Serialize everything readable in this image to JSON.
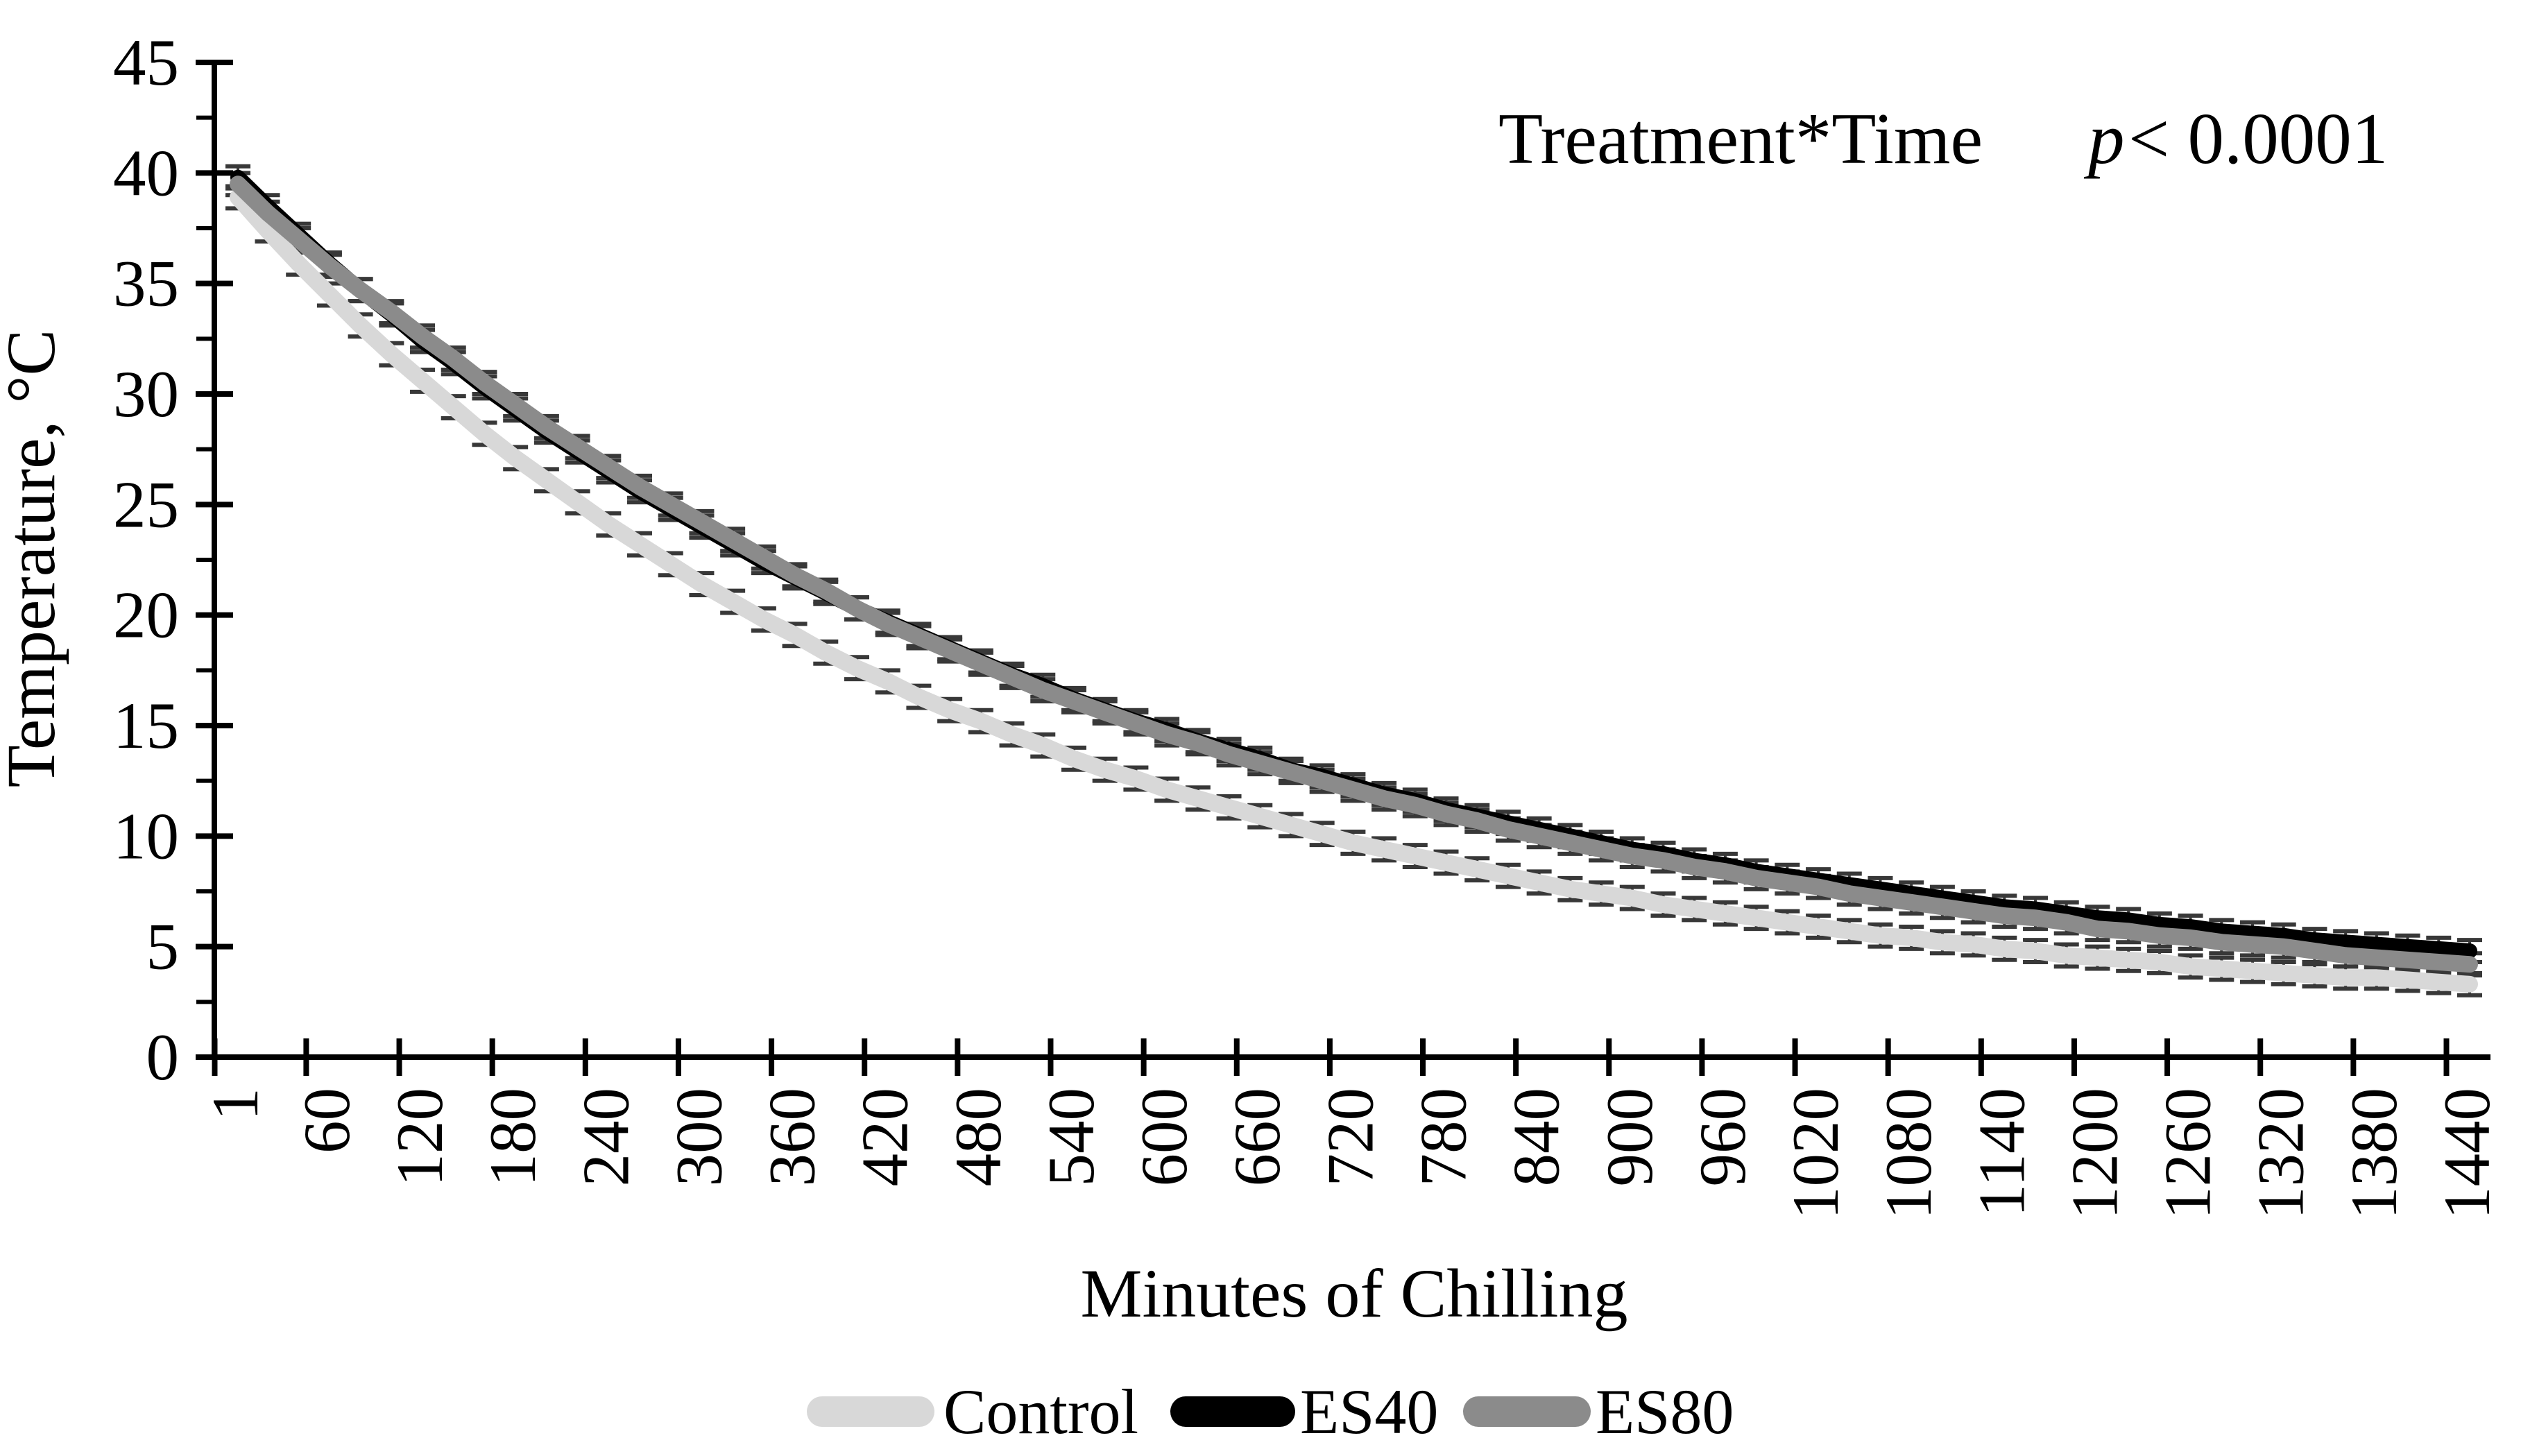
{
  "figure": {
    "annotation": {
      "label": "Treatment*Time",
      "p_symbol": "p",
      "p_value": " < 0.0001"
    },
    "x_axis_title": "Minutes of Chilling",
    "y_axis_title": "Temperature, °C"
  },
  "legend": {
    "items": [
      {
        "label": "Control",
        "color": "#d8d8d8"
      },
      {
        "label": "ES40",
        "color": "#000000"
      },
      {
        "label": "ES80",
        "color": "#8b8b8b"
      }
    ]
  },
  "chart_data": {
    "type": "line",
    "title": "",
    "xlabel": "Minutes of Chilling",
    "ylabel": "Temperature, °C",
    "annotation": "Treatment*Time  p < 0.0001",
    "grid": false,
    "legend_position": "bottom",
    "ylim": [
      0,
      45
    ],
    "y_tick_step": 5,
    "y_minor_tick_step": 2.5,
    "error_bar": 0.5,
    "error_bar_color": "#383838",
    "x_tick_labels": [
      1,
      60,
      120,
      180,
      240,
      300,
      360,
      420,
      480,
      540,
      600,
      660,
      720,
      780,
      840,
      900,
      960,
      1020,
      1080,
      1140,
      1200,
      1260,
      1320,
      1380,
      1440
    ],
    "x": [
      1,
      20,
      40,
      60,
      80,
      100,
      120,
      140,
      160,
      180,
      200,
      220,
      240,
      260,
      280,
      300,
      320,
      340,
      360,
      380,
      400,
      420,
      440,
      460,
      480,
      500,
      520,
      540,
      560,
      580,
      600,
      620,
      640,
      660,
      680,
      700,
      720,
      740,
      760,
      780,
      800,
      820,
      840,
      860,
      880,
      900,
      920,
      940,
      960,
      980,
      1000,
      1020,
      1040,
      1060,
      1080,
      1100,
      1120,
      1140,
      1160,
      1180,
      1200,
      1220,
      1240,
      1260,
      1280,
      1300,
      1320,
      1340,
      1360,
      1380,
      1400,
      1420,
      1440
    ],
    "series": [
      {
        "name": "Control",
        "color": "#d8d8d8",
        "stroke_width": 24,
        "values": [
          38.9,
          37.4,
          35.9,
          34.5,
          33.1,
          31.8,
          30.6,
          29.4,
          28.2,
          27.1,
          26.1,
          25.1,
          24.1,
          23.2,
          22.3,
          21.4,
          20.6,
          19.8,
          19.1,
          18.3,
          17.6,
          17.0,
          16.3,
          15.7,
          15.2,
          14.6,
          14.1,
          13.5,
          13.0,
          12.6,
          12.1,
          11.7,
          11.3,
          10.9,
          10.5,
          10.1,
          9.7,
          9.4,
          9.1,
          8.8,
          8.5,
          8.2,
          7.9,
          7.6,
          7.4,
          7.2,
          6.9,
          6.7,
          6.5,
          6.3,
          6.1,
          5.9,
          5.7,
          5.5,
          5.4,
          5.2,
          5.1,
          4.9,
          4.8,
          4.6,
          4.5,
          4.4,
          4.3,
          4.1,
          4.0,
          3.9,
          3.8,
          3.7,
          3.6,
          3.6,
          3.5,
          3.4,
          3.3
        ]
      },
      {
        "name": "ES40",
        "color": "#000000",
        "stroke_width": 22,
        "values": [
          39.8,
          38.5,
          37.2,
          35.9,
          34.7,
          33.6,
          32.4,
          31.4,
          30.3,
          29.3,
          28.3,
          27.4,
          26.5,
          25.6,
          24.8,
          24.0,
          23.2,
          22.4,
          21.7,
          21.0,
          20.3,
          19.7,
          19.1,
          18.5,
          17.9,
          17.3,
          16.8,
          16.2,
          15.7,
          15.2,
          14.8,
          14.3,
          13.9,
          13.5,
          13.0,
          12.7,
          12.3,
          11.9,
          11.6,
          11.2,
          10.9,
          10.6,
          10.3,
          10.0,
          9.7,
          9.4,
          9.2,
          8.9,
          8.7,
          8.4,
          8.2,
          8.0,
          7.8,
          7.6,
          7.4,
          7.2,
          7.0,
          6.8,
          6.7,
          6.5,
          6.3,
          6.2,
          6.0,
          5.9,
          5.7,
          5.6,
          5.5,
          5.3,
          5.2,
          5.1,
          5.0,
          4.9,
          4.8
        ]
      },
      {
        "name": "ES80",
        "color": "#8b8b8b",
        "stroke_width": 24,
        "values": [
          39.5,
          38.2,
          37.0,
          35.8,
          34.7,
          33.7,
          32.6,
          31.6,
          30.5,
          29.5,
          28.5,
          27.6,
          26.7,
          25.8,
          25.0,
          24.2,
          23.4,
          22.6,
          21.8,
          21.1,
          20.3,
          19.6,
          19.0,
          18.4,
          17.8,
          17.2,
          16.6,
          16.1,
          15.6,
          15.1,
          14.6,
          14.2,
          13.7,
          13.3,
          12.9,
          12.5,
          12.1,
          11.7,
          11.4,
          11.0,
          10.7,
          10.3,
          10.0,
          9.7,
          9.4,
          9.1,
          8.9,
          8.6,
          8.4,
          8.1,
          7.9,
          7.7,
          7.4,
          7.2,
          7.0,
          6.8,
          6.6,
          6.4,
          6.3,
          6.1,
          5.8,
          5.7,
          5.5,
          5.4,
          5.2,
          5.1,
          5.0,
          4.8,
          4.6,
          4.5,
          4.4,
          4.3,
          4.2
        ]
      }
    ]
  }
}
